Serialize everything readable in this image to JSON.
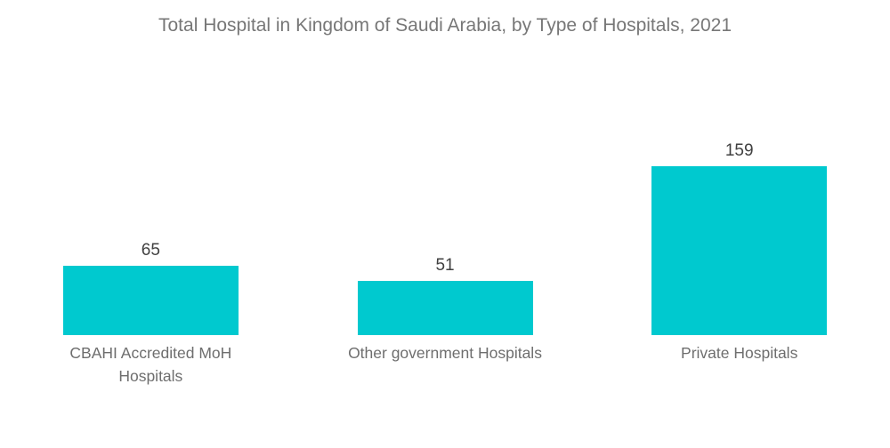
{
  "chart_data": {
    "type": "bar",
    "title": "Total Hospital in Kingdom of Saudi Arabia, by Type of Hospitals, 2021",
    "categories": [
      "CBAHI Accredited MoH Hospitals",
      "Other government Hospitals",
      "Private Hospitals"
    ],
    "values": [
      65,
      51,
      159
    ],
    "value_labels": [
      "65",
      "51",
      "159"
    ],
    "xlabel": "",
    "ylabel": "",
    "ylim": [
      0,
      170
    ],
    "grid": false,
    "legend": false,
    "axes_visible": false,
    "bar_color": "#00C9CF"
  },
  "colors": {
    "background": "#FFFFFF",
    "bar": "#00C9CF",
    "title_text": "#777777",
    "value_text": "#404040",
    "category_text": "#6E6E6E"
  }
}
